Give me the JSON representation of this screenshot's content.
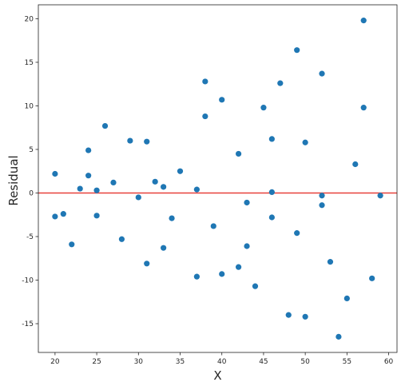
{
  "chart_data": {
    "type": "scatter",
    "xlabel": "X",
    "ylabel": "Residual",
    "xlim": [
      18,
      61
    ],
    "ylim": [
      -18.3,
      21.6
    ],
    "xticks": [
      20,
      25,
      30,
      35,
      40,
      45,
      50,
      55,
      60
    ],
    "yticks": [
      -15,
      -10,
      -5,
      0,
      5,
      10,
      15,
      20
    ],
    "grid": false,
    "reference_line": {
      "y": 0,
      "color": "#e8413b"
    },
    "marker_color": "#1f77b4",
    "points": [
      {
        "x": 20,
        "y": 2.2
      },
      {
        "x": 20,
        "y": -2.7
      },
      {
        "x": 21,
        "y": -2.4
      },
      {
        "x": 22,
        "y": -5.9
      },
      {
        "x": 23,
        "y": 0.5
      },
      {
        "x": 24,
        "y": 4.9
      },
      {
        "x": 24,
        "y": 2.0
      },
      {
        "x": 25,
        "y": 0.3
      },
      {
        "x": 25,
        "y": -2.6
      },
      {
        "x": 26,
        "y": 7.7
      },
      {
        "x": 27,
        "y": 1.2
      },
      {
        "x": 28,
        "y": -5.3
      },
      {
        "x": 29,
        "y": 6.0
      },
      {
        "x": 30,
        "y": -0.5
      },
      {
        "x": 31,
        "y": 5.9
      },
      {
        "x": 31,
        "y": -8.1
      },
      {
        "x": 32,
        "y": 1.3
      },
      {
        "x": 33,
        "y": 0.7
      },
      {
        "x": 33,
        "y": -6.3
      },
      {
        "x": 34,
        "y": -2.9
      },
      {
        "x": 35,
        "y": 2.5
      },
      {
        "x": 37,
        "y": 0.4
      },
      {
        "x": 37,
        "y": -9.6
      },
      {
        "x": 38,
        "y": 12.8
      },
      {
        "x": 38,
        "y": 8.8
      },
      {
        "x": 39,
        "y": -3.8
      },
      {
        "x": 40,
        "y": 10.7
      },
      {
        "x": 40,
        "y": -9.3
      },
      {
        "x": 42,
        "y": 4.5
      },
      {
        "x": 42,
        "y": -8.5
      },
      {
        "x": 43,
        "y": -1.1
      },
      {
        "x": 43,
        "y": -6.1
      },
      {
        "x": 44,
        "y": -10.7
      },
      {
        "x": 45,
        "y": 9.8
      },
      {
        "x": 46,
        "y": 6.2
      },
      {
        "x": 46,
        "y": 0.1
      },
      {
        "x": 46,
        "y": -2.8
      },
      {
        "x": 47,
        "y": 12.6
      },
      {
        "x": 48,
        "y": -14.0
      },
      {
        "x": 49,
        "y": 16.4
      },
      {
        "x": 49,
        "y": -4.6
      },
      {
        "x": 50,
        "y": 5.8
      },
      {
        "x": 50,
        "y": -14.2
      },
      {
        "x": 52,
        "y": 13.7
      },
      {
        "x": 52,
        "y": -0.3
      },
      {
        "x": 52,
        "y": -1.4
      },
      {
        "x": 53,
        "y": -7.9
      },
      {
        "x": 54,
        "y": -16.5
      },
      {
        "x": 55,
        "y": -12.1
      },
      {
        "x": 56,
        "y": 3.3
      },
      {
        "x": 57,
        "y": 19.8
      },
      {
        "x": 57,
        "y": 9.8
      },
      {
        "x": 58,
        "y": -9.8
      },
      {
        "x": 59,
        "y": -0.3
      }
    ]
  }
}
